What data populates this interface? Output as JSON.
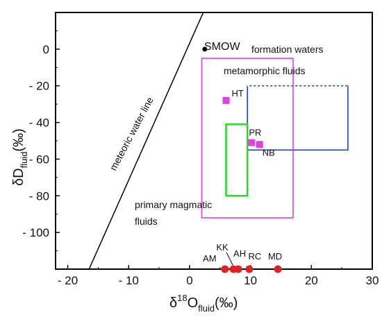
{
  "chart_data": {
    "type": "scatter",
    "xlabel": {
      "main": "δ",
      "sup": "18",
      "mid": "O",
      "sub": "fluid",
      "tail": "(‰)"
    },
    "ylabel": {
      "main": "δD",
      "sub": "fluid",
      "tail": "(‰)"
    },
    "xlim": [
      -22,
      30
    ],
    "ylim": [
      -120,
      20
    ],
    "x_ticks": [
      -20,
      -10,
      0,
      10,
      20,
      30
    ],
    "x_tick_labels": [
      "- 20",
      "- 10",
      "0",
      "10",
      "20",
      "30"
    ],
    "y_ticks": [
      0,
      -20,
      -40,
      -60,
      -80,
      -100
    ],
    "y_tick_labels": [
      "0",
      "- 20",
      "- 40",
      "- 60",
      "- 80",
      "- 100"
    ],
    "grid": false,
    "meteoric_water_line": {
      "label": "meteoric water line",
      "x1": -16.5,
      "y1": -120,
      "x2": 5.6,
      "y2": 45,
      "color": "#000000"
    },
    "smow": {
      "label": "SMOW",
      "x": 2.5,
      "y": 0,
      "color": "#000000"
    },
    "fields": [
      {
        "label": "formation waters",
        "x0": 9.5,
        "x1": 26,
        "y0": -55,
        "y1": -20,
        "color": "#1f3fd6",
        "dashed_top": true
      },
      {
        "label": "metamorphic fluids",
        "x0": 2,
        "x1": 17,
        "y0": -92,
        "y1": -5,
        "color": "#e040e0"
      },
      {
        "label": "",
        "x0": 6,
        "x1": 9.5,
        "y0": -80,
        "y1": -41,
        "color": "#22dd22"
      }
    ],
    "region_labels": {
      "formation_waters": "formation waters",
      "metamorphic_fluids": "metamorphic fluids",
      "primary_magmatic_line1": "primary magmatic",
      "primary_magmatic_line2": "fluids"
    },
    "samples": [
      {
        "label": "HT",
        "x": 6.0,
        "y": -28,
        "color": "#e040e0"
      },
      {
        "label": "PR",
        "x": 10.2,
        "y": -51,
        "color": "#e040e0"
      },
      {
        "label": "NB",
        "x": 11.5,
        "y": -52,
        "color": "#e040e0"
      }
    ],
    "x_axis_samples": [
      {
        "label": "AM",
        "x": 5.8,
        "color": "#e52020"
      },
      {
        "label": "KK",
        "x": 7.2,
        "color": "#e52020"
      },
      {
        "label": "AH",
        "x": 8.0,
        "color": "#e52020"
      },
      {
        "label": "RC",
        "x": 9.8,
        "color": "#e52020"
      },
      {
        "label": "MD",
        "x": 14.5,
        "color": "#e52020"
      }
    ]
  }
}
